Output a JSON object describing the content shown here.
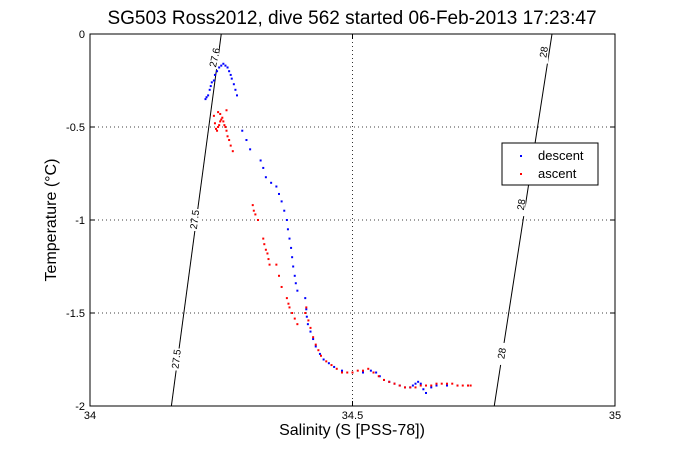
{
  "chart_data": {
    "type": "scatter",
    "title": "SG503 Ross2012, dive 562 started 06-Feb-2013 17:23:47",
    "xlabel": "Salinity (S [PSS-78])",
    "ylabel": "Temperature (°C)",
    "xlim": [
      34,
      35
    ],
    "ylim": [
      -2,
      0
    ],
    "xticks": [
      34,
      34.5,
      35
    ],
    "xtick_labels": [
      "34",
      "34.5",
      "35"
    ],
    "yticks": [
      -2,
      -1.5,
      -1,
      -0.5,
      0
    ],
    "ytick_labels": [
      "-2",
      "-1.5",
      "-1",
      "-0.5",
      "0"
    ],
    "grid": true,
    "legend_position": "right",
    "contours": [
      {
        "label": "27.5",
        "points": [
          [
            34.155,
            -2.0
          ],
          [
            34.25,
            0.0
          ]
        ],
        "labels_at": [
          [
            34.165,
            -1.75
          ],
          [
            34.2,
            -1.0
          ]
        ]
      },
      {
        "label": "27.6",
        "points": [
          [
            34.25,
            0.0
          ]
        ],
        "labels_at": [
          [
            34.238,
            -0.13
          ]
        ]
      },
      {
        "label": "28",
        "points": [
          [
            34.77,
            -2.0
          ],
          [
            34.88,
            0.0
          ]
        ],
        "labels_at": [
          [
            34.785,
            -1.72
          ],
          [
            34.822,
            -0.92
          ],
          [
            34.865,
            -0.1
          ]
        ]
      }
    ],
    "series": [
      {
        "name": "descent",
        "color": "#0000ff",
        "points": [
          [
            34.22,
            -0.35
          ],
          [
            34.222,
            -0.34
          ],
          [
            34.225,
            -0.33
          ],
          [
            34.228,
            -0.3
          ],
          [
            34.23,
            -0.28
          ],
          [
            34.232,
            -0.26
          ],
          [
            34.236,
            -0.25
          ],
          [
            34.238,
            -0.22
          ],
          [
            34.242,
            -0.2
          ],
          [
            34.246,
            -0.18
          ],
          [
            34.25,
            -0.17
          ],
          [
            34.254,
            -0.16
          ],
          [
            34.258,
            -0.17
          ],
          [
            34.262,
            -0.18
          ],
          [
            34.265,
            -0.2
          ],
          [
            34.268,
            -0.22
          ],
          [
            34.27,
            -0.24
          ],
          [
            34.274,
            -0.27
          ],
          [
            34.277,
            -0.3
          ],
          [
            34.28,
            -0.33
          ],
          [
            34.29,
            -0.52
          ],
          [
            34.298,
            -0.57
          ],
          [
            34.305,
            -0.62
          ],
          [
            34.325,
            -0.68
          ],
          [
            34.33,
            -0.72
          ],
          [
            34.335,
            -0.77
          ],
          [
            34.345,
            -0.8
          ],
          [
            34.355,
            -0.82
          ],
          [
            34.36,
            -0.86
          ],
          [
            34.365,
            -0.9
          ],
          [
            34.37,
            -0.95
          ],
          [
            34.375,
            -1.0
          ],
          [
            34.377,
            -1.05
          ],
          [
            34.38,
            -1.1
          ],
          [
            34.383,
            -1.15
          ],
          [
            34.385,
            -1.2
          ],
          [
            34.387,
            -1.25
          ],
          [
            34.39,
            -1.3
          ],
          [
            34.392,
            -1.34
          ],
          [
            34.395,
            -1.38
          ],
          [
            34.41,
            -1.42
          ],
          [
            34.412,
            -1.48
          ],
          [
            34.413,
            -1.52
          ],
          [
            34.415,
            -1.56
          ],
          [
            34.42,
            -1.6
          ],
          [
            34.425,
            -1.64
          ],
          [
            34.43,
            -1.68
          ],
          [
            34.438,
            -1.72
          ],
          [
            34.445,
            -1.75
          ],
          [
            34.455,
            -1.77
          ],
          [
            34.465,
            -1.79
          ],
          [
            34.48,
            -1.81
          ],
          [
            34.5,
            -1.82
          ],
          [
            34.52,
            -1.82
          ],
          [
            34.535,
            -1.81
          ],
          [
            34.545,
            -1.82
          ],
          [
            34.552,
            -1.84
          ],
          [
            34.56,
            -1.86
          ],
          [
            34.57,
            -1.87
          ],
          [
            34.58,
            -1.88
          ],
          [
            34.59,
            -1.89
          ],
          [
            34.6,
            -1.9
          ],
          [
            34.61,
            -1.9
          ],
          [
            34.615,
            -1.89
          ],
          [
            34.62,
            -1.88
          ],
          [
            34.625,
            -1.87
          ],
          [
            34.63,
            -1.88
          ],
          [
            34.635,
            -1.91
          ],
          [
            34.64,
            -1.93
          ],
          [
            34.65,
            -1.9
          ],
          [
            34.66,
            -1.89
          ],
          [
            34.68,
            -1.89
          ],
          [
            34.7,
            -1.89
          ],
          [
            34.72,
            -1.89
          ]
        ]
      },
      {
        "name": "ascent",
        "color": "#ff0000",
        "points": [
          [
            34.236,
            -0.44
          ],
          [
            34.238,
            -0.48
          ],
          [
            34.24,
            -0.51
          ],
          [
            34.242,
            -0.52
          ],
          [
            34.244,
            -0.5
          ],
          [
            34.246,
            -0.49
          ],
          [
            34.248,
            -0.47
          ],
          [
            34.25,
            -0.46
          ],
          [
            34.252,
            -0.45
          ],
          [
            34.254,
            -0.47
          ],
          [
            34.256,
            -0.49
          ],
          [
            34.258,
            -0.5
          ],
          [
            34.26,
            -0.52
          ],
          [
            34.262,
            -0.55
          ],
          [
            34.265,
            -0.57
          ],
          [
            34.268,
            -0.6
          ],
          [
            34.272,
            -0.63
          ],
          [
            34.248,
            -0.43
          ],
          [
            34.26,
            -0.41
          ],
          [
            34.244,
            -0.42
          ],
          [
            34.31,
            -0.92
          ],
          [
            34.312,
            -0.95
          ],
          [
            34.315,
            -0.97
          ],
          [
            34.32,
            -1.0
          ],
          [
            34.33,
            -1.1
          ],
          [
            34.332,
            -1.13
          ],
          [
            34.335,
            -1.16
          ],
          [
            34.338,
            -1.18
          ],
          [
            34.34,
            -1.21
          ],
          [
            34.342,
            -1.24
          ],
          [
            34.355,
            -1.24
          ],
          [
            34.36,
            -1.3
          ],
          [
            34.365,
            -1.36
          ],
          [
            34.375,
            -1.42
          ],
          [
            34.378,
            -1.45
          ],
          [
            34.38,
            -1.47
          ],
          [
            34.385,
            -1.5
          ],
          [
            34.39,
            -1.53
          ],
          [
            34.395,
            -1.56
          ],
          [
            34.41,
            -1.5
          ],
          [
            34.412,
            -1.47
          ],
          [
            34.416,
            -1.54
          ],
          [
            34.42,
            -1.58
          ],
          [
            34.425,
            -1.63
          ],
          [
            34.43,
            -1.67
          ],
          [
            34.435,
            -1.7
          ],
          [
            34.44,
            -1.73
          ],
          [
            34.45,
            -1.76
          ],
          [
            34.46,
            -1.78
          ],
          [
            34.47,
            -1.8
          ],
          [
            34.48,
            -1.82
          ],
          [
            34.49,
            -1.82
          ],
          [
            34.5,
            -1.82
          ],
          [
            34.51,
            -1.81
          ],
          [
            34.52,
            -1.81
          ],
          [
            34.53,
            -1.8
          ],
          [
            34.54,
            -1.82
          ],
          [
            34.55,
            -1.84
          ],
          [
            34.56,
            -1.86
          ],
          [
            34.57,
            -1.87
          ],
          [
            34.58,
            -1.88
          ],
          [
            34.59,
            -1.89
          ],
          [
            34.6,
            -1.9
          ],
          [
            34.61,
            -1.9
          ],
          [
            34.62,
            -1.9
          ],
          [
            34.63,
            -1.89
          ],
          [
            34.64,
            -1.89
          ],
          [
            34.65,
            -1.89
          ],
          [
            34.66,
            -1.88
          ],
          [
            34.67,
            -1.88
          ],
          [
            34.68,
            -1.88
          ],
          [
            34.69,
            -1.88
          ],
          [
            34.7,
            -1.89
          ],
          [
            34.71,
            -1.89
          ],
          [
            34.72,
            -1.89
          ],
          [
            34.725,
            -1.89
          ]
        ]
      }
    ]
  }
}
